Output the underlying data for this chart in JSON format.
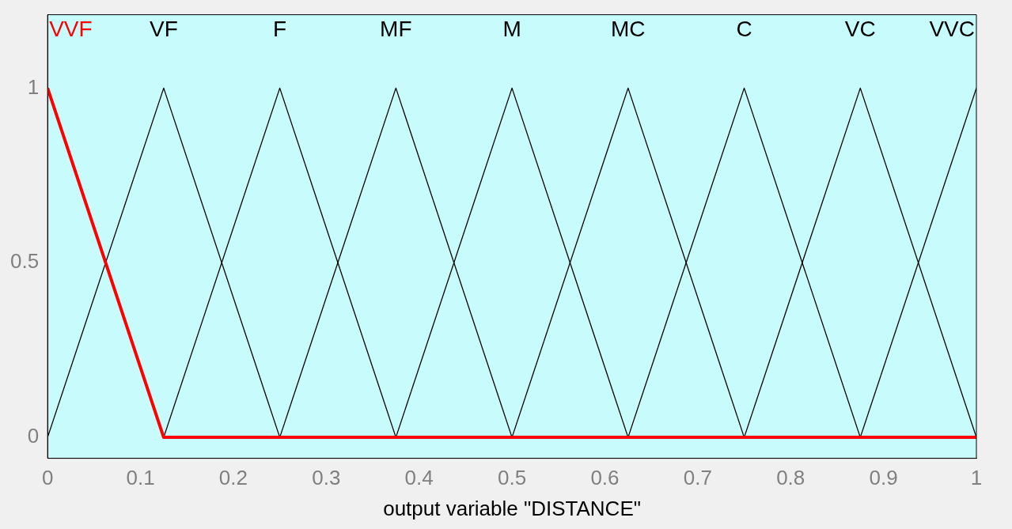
{
  "chart_data": {
    "type": "line",
    "xlabel": "output variable \"DISTANCE\"",
    "xlim": [
      0,
      1
    ],
    "ylim": [
      -0.06,
      1.21
    ],
    "xticks": [
      0,
      0.1,
      0.2,
      0.3,
      0.4,
      0.5,
      0.6,
      0.7,
      0.8,
      0.9,
      1
    ],
    "yticks": [
      0,
      0.5,
      1
    ],
    "grid": false,
    "legend": false,
    "marker": "none",
    "line_style": "solid",
    "series": [
      {
        "name": "VVF",
        "color": "#ff0000",
        "x": [
          0,
          0.125,
          1
        ],
        "values": [
          1,
          0,
          0
        ]
      },
      {
        "name": "VF",
        "color": "#000000",
        "x": [
          0,
          0.125,
          0.25
        ],
        "values": [
          0,
          1,
          0
        ]
      },
      {
        "name": "F",
        "color": "#000000",
        "x": [
          0.125,
          0.25,
          0.375
        ],
        "values": [
          0,
          1,
          0
        ]
      },
      {
        "name": "MF",
        "color": "#000000",
        "x": [
          0.25,
          0.375,
          0.5
        ],
        "values": [
          0,
          1,
          0
        ]
      },
      {
        "name": "M",
        "color": "#000000",
        "x": [
          0.375,
          0.5,
          0.625
        ],
        "values": [
          0,
          1,
          0
        ]
      },
      {
        "name": "MC",
        "color": "#000000",
        "x": [
          0.5,
          0.625,
          0.75
        ],
        "values": [
          0,
          1,
          0
        ]
      },
      {
        "name": "C",
        "color": "#000000",
        "x": [
          0.625,
          0.75,
          0.875
        ],
        "values": [
          0,
          1,
          0
        ]
      },
      {
        "name": "VC",
        "color": "#000000",
        "x": [
          0.75,
          0.875,
          1
        ],
        "values": [
          0,
          1,
          0
        ]
      },
      {
        "name": "VVC",
        "color": "#000000",
        "x": [
          0.875,
          1
        ],
        "values": [
          0,
          1
        ]
      }
    ]
  }
}
